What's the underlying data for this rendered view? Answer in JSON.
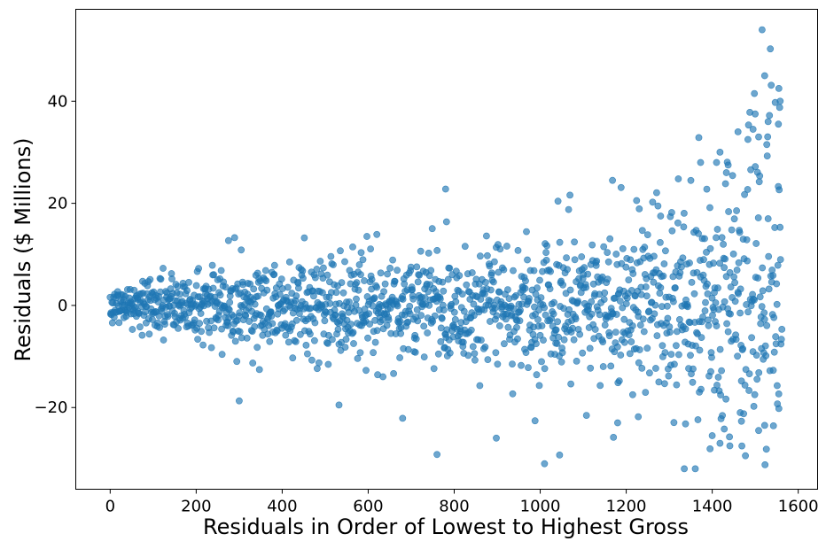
{
  "chart_data": {
    "type": "scatter",
    "title": "",
    "xlabel": "Residuals in Order of Lowest to Highest Gross",
    "ylabel": "Residuals ($ Millions)",
    "xlim": [
      -80,
      1645
    ],
    "ylim": [
      -36,
      58
    ],
    "xticks": [
      0,
      200,
      400,
      600,
      800,
      1000,
      1200,
      1400,
      1600
    ],
    "xtick_labels": [
      "0",
      "200",
      "400",
      "600",
      "800",
      "1000",
      "1200",
      "1400",
      "1600"
    ],
    "yticks": [
      -20,
      0,
      20,
      40
    ],
    "ytick_labels": [
      "−20",
      "0",
      "20",
      "40"
    ],
    "grid": false,
    "legend": "none",
    "marker_color": "#1f77b4",
    "marker_alpha": 0.65,
    "n_points": 1563,
    "envelope": {
      "x": [
        0,
        200,
        400,
        600,
        800,
        1000,
        1200,
        1300,
        1400,
        1500,
        1563
      ],
      "spread_sd": [
        1.8,
        3.8,
        5.0,
        5.6,
        6.2,
        7.0,
        8.5,
        10.0,
        13.5,
        17.0,
        19.0
      ]
    },
    "outliers": [
      {
        "x": 1516,
        "y": 54.0
      },
      {
        "x": 1522,
        "y": 45.0
      },
      {
        "x": 1555,
        "y": 42.5
      },
      {
        "x": 1498,
        "y": 41.5
      },
      {
        "x": 1558,
        "y": 40.0
      },
      {
        "x": 1500,
        "y": 37.5
      },
      {
        "x": 1530,
        "y": 36.0
      },
      {
        "x": 1554,
        "y": 35.5
      },
      {
        "x": 1495,
        "y": 34.5
      },
      {
        "x": 1460,
        "y": 34.0
      },
      {
        "x": 1508,
        "y": 33.0
      },
      {
        "x": 1483,
        "y": 32.5
      },
      {
        "x": 1527,
        "y": 31.5
      },
      {
        "x": 1418,
        "y": 30.0
      },
      {
        "x": 1410,
        "y": 28.0
      },
      {
        "x": 1373,
        "y": 28.0
      },
      {
        "x": 1437,
        "y": 27.5
      },
      {
        "x": 1433,
        "y": 26.0
      },
      {
        "x": 1168,
        "y": 24.5
      },
      {
        "x": 780,
        "y": 22.8
      },
      {
        "x": 1280,
        "y": 17.5
      },
      {
        "x": 275,
        "y": 12.7
      },
      {
        "x": 620,
        "y": 13.9
      },
      {
        "x": 300,
        "y": -18.7
      },
      {
        "x": 760,
        "y": -29.2
      },
      {
        "x": 898,
        "y": -26.0
      },
      {
        "x": 1010,
        "y": -31.0
      },
      {
        "x": 1045,
        "y": -29.3
      },
      {
        "x": 1335,
        "y": -32.0
      },
      {
        "x": 1395,
        "y": -28.1
      },
      {
        "x": 1418,
        "y": -27.0
      },
      {
        "x": 1441,
        "y": -27.5
      },
      {
        "x": 1400,
        "y": -25.5
      },
      {
        "x": 1428,
        "y": -24.2
      },
      {
        "x": 1508,
        "y": -24.5
      },
      {
        "x": 1522,
        "y": -23.5
      },
      {
        "x": 1338,
        "y": -23.2
      },
      {
        "x": 1228,
        "y": -21.8
      },
      {
        "x": 1180,
        "y": -23.0
      },
      {
        "x": 680,
        "y": -22.1
      },
      {
        "x": 988,
        "y": -22.6
      },
      {
        "x": 1465,
        "y": -21.0
      },
      {
        "x": 1555,
        "y": -20.2
      },
      {
        "x": 532,
        "y": -19.5
      },
      {
        "x": 1215,
        "y": -17.5
      },
      {
        "x": 1370,
        "y": -17.0
      },
      {
        "x": 1405,
        "y": -16.6
      },
      {
        "x": 1551,
        "y": -15.7
      },
      {
        "x": 1542,
        "y": -12.7
      },
      {
        "x": 1468,
        "y": -14.8
      }
    ]
  }
}
